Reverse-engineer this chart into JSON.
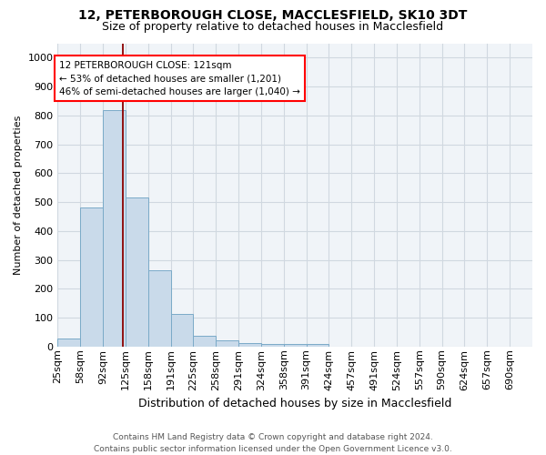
{
  "title1": "12, PETERBOROUGH CLOSE, MACCLESFIELD, SK10 3DT",
  "title2": "Size of property relative to detached houses in Macclesfield",
  "xlabel": "Distribution of detached houses by size in Macclesfield",
  "ylabel": "Number of detached properties",
  "bin_labels": [
    "25sqm",
    "58sqm",
    "92sqm",
    "125sqm",
    "158sqm",
    "191sqm",
    "225sqm",
    "258sqm",
    "291sqm",
    "324sqm",
    "358sqm",
    "391sqm",
    "424sqm",
    "457sqm",
    "491sqm",
    "524sqm",
    "557sqm",
    "590sqm",
    "624sqm",
    "657sqm",
    "690sqm"
  ],
  "bar_values": [
    28,
    480,
    820,
    515,
    265,
    112,
    38,
    22,
    12,
    8,
    8,
    8,
    0,
    0,
    0,
    0,
    0,
    0,
    0,
    0,
    0
  ],
  "bar_color": "#c9daea",
  "bar_edge_color": "#7aaac8",
  "vline_x_bin": 3,
  "vline_color": "#8b0000",
  "annotation_text_line1": "12 PETERBOROUGH CLOSE: 121sqm",
  "annotation_text_line2": "← 53% of detached houses are smaller (1,201)",
  "annotation_text_line3": "46% of semi-detached houses are larger (1,040) →",
  "footer_line1": "Contains HM Land Registry data © Crown copyright and database right 2024.",
  "footer_line2": "Contains public sector information licensed under the Open Government Licence v3.0.",
  "ylim": [
    0,
    1050
  ],
  "yticks": [
    0,
    100,
    200,
    300,
    400,
    500,
    600,
    700,
    800,
    900,
    1000
  ],
  "title1_fontsize": 10,
  "title2_fontsize": 9,
  "ylabel_fontsize": 8,
  "xlabel_fontsize": 9,
  "tick_fontsize": 8,
  "annot_fontsize": 7.5,
  "footer_fontsize": 6.5,
  "grid_color": "#d0d8e0",
  "background_color": "#f0f4f8"
}
